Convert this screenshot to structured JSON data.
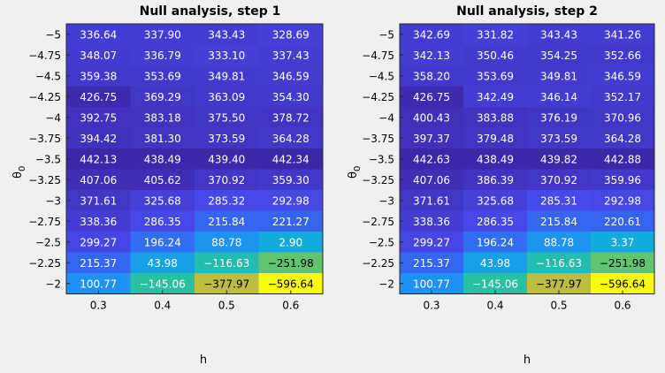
{
  "chart_data": [
    {
      "type": "heatmap",
      "title": "Null analysis, step 1",
      "xlabel": "h",
      "ylabel": "θ",
      "ylabel_subscript": "0",
      "x": [
        "0.3",
        "0.4",
        "0.5",
        "0.6"
      ],
      "y": [
        "−5",
        "−4.75",
        "−4.5",
        "−4.25",
        "−4",
        "−3.75",
        "−3.5",
        "−3.25",
        "−3",
        "−2.75",
        "−2.5",
        "−2.25",
        "−2"
      ],
      "values": [
        [
          336.64,
          337.9,
          343.43,
          328.69
        ],
        [
          348.07,
          336.79,
          333.1,
          337.43
        ],
        [
          359.38,
          353.69,
          349.81,
          346.59
        ],
        [
          426.75,
          369.29,
          363.09,
          354.3
        ],
        [
          392.75,
          383.18,
          375.5,
          378.72
        ],
        [
          394.42,
          381.3,
          373.59,
          364.28
        ],
        [
          442.13,
          438.49,
          439.4,
          442.34
        ],
        [
          407.06,
          405.62,
          370.92,
          359.3
        ],
        [
          371.61,
          325.68,
          285.32,
          292.98
        ],
        [
          338.36,
          286.35,
          215.84,
          221.27
        ],
        [
          299.27,
          196.24,
          88.78,
          2.9
        ],
        [
          215.37,
          43.98,
          -116.63,
          -251.98
        ],
        [
          100.77,
          -145.06,
          -377.97,
          -596.64
        ]
      ],
      "colormap": "parula"
    },
    {
      "type": "heatmap",
      "title": "Null analysis, step 2",
      "xlabel": "h",
      "ylabel": "θ",
      "ylabel_subscript": "0",
      "x": [
        "0.3",
        "0.4",
        "0.5",
        "0.6"
      ],
      "y": [
        "−5",
        "−4.75",
        "−4.5",
        "−4.25",
        "−4",
        "−3.75",
        "−3.5",
        "−3.25",
        "−3",
        "−2.75",
        "−2.5",
        "−2.25",
        "−2"
      ],
      "values": [
        [
          342.69,
          331.82,
          343.43,
          341.26
        ],
        [
          342.13,
          350.46,
          354.25,
          352.66
        ],
        [
          358.2,
          353.69,
          349.81,
          346.59
        ],
        [
          426.75,
          342.49,
          346.14,
          352.17
        ],
        [
          400.43,
          383.88,
          376.19,
          370.96
        ],
        [
          397.37,
          379.48,
          373.59,
          364.28
        ],
        [
          442.63,
          438.49,
          439.82,
          442.88
        ],
        [
          407.06,
          386.39,
          370.92,
          359.96
        ],
        [
          371.61,
          325.68,
          285.31,
          292.98
        ],
        [
          338.36,
          286.35,
          215.84,
          220.61
        ],
        [
          299.27,
          196.24,
          88.78,
          3.37
        ],
        [
          215.37,
          43.98,
          -116.63,
          -251.98
        ],
        [
          100.77,
          -145.06,
          -377.97,
          -596.64
        ]
      ],
      "colormap": "parula"
    }
  ]
}
